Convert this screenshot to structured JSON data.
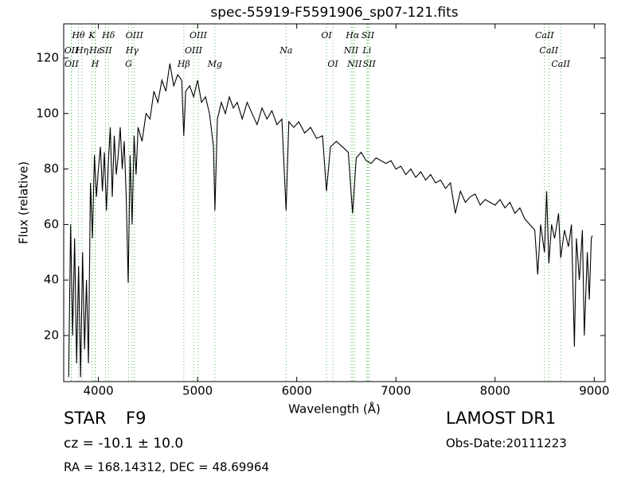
{
  "chart_data": {
    "type": "line",
    "title": "spec-55919-F5591906_sp07-121.fits",
    "x_label": "Wavelength (Å)",
    "y_label": "Flux (relative)",
    "xlim": [
      3650,
      9110
    ],
    "ylim": [
      3.4,
      132.3
    ],
    "xticks": [
      4000,
      5000,
      6000,
      7000,
      8000,
      9000
    ],
    "yticks": [
      20,
      40,
      60,
      80,
      100,
      120
    ],
    "color": "#000000",
    "x": [
      3700,
      3720,
      3740,
      3760,
      3780,
      3800,
      3820,
      3840,
      3860,
      3880,
      3900,
      3920,
      3940,
      3960,
      3980,
      4000,
      4020,
      4040,
      4060,
      4080,
      4100,
      4120,
      4140,
      4160,
      4180,
      4200,
      4220,
      4240,
      4260,
      4280,
      4300,
      4320,
      4340,
      4360,
      4380,
      4400,
      4440,
      4480,
      4520,
      4560,
      4600,
      4640,
      4680,
      4720,
      4760,
      4800,
      4840,
      4861,
      4880,
      4920,
      4960,
      5000,
      5040,
      5080,
      5120,
      5160,
      5175,
      5200,
      5240,
      5280,
      5320,
      5360,
      5400,
      5450,
      5500,
      5550,
      5600,
      5650,
      5700,
      5750,
      5800,
      5850,
      5893,
      5920,
      5970,
      6020,
      6080,
      6140,
      6200,
      6260,
      6300,
      6340,
      6400,
      6460,
      6520,
      6563,
      6600,
      6650,
      6700,
      6750,
      6800,
      6850,
      6900,
      6950,
      7000,
      7050,
      7100,
      7150,
      7200,
      7250,
      7300,
      7350,
      7400,
      7450,
      7500,
      7550,
      7600,
      7650,
      7700,
      7750,
      7800,
      7850,
      7900,
      7950,
      8000,
      8050,
      8100,
      8150,
      8200,
      8250,
      8300,
      8350,
      8400,
      8430,
      8460,
      8498,
      8520,
      8542,
      8570,
      8600,
      8640,
      8662,
      8700,
      8740,
      8770,
      8800,
      8820,
      8850,
      8880,
      8900,
      8930,
      8950,
      8970,
      8980
    ],
    "values": [
      5,
      60,
      20,
      55,
      10,
      45,
      5,
      50,
      15,
      40,
      10,
      75,
      55,
      85,
      70,
      80,
      88,
      72,
      86,
      65,
      82,
      95,
      70,
      92,
      78,
      85,
      95,
      80,
      90,
      70,
      39,
      85,
      60,
      92,
      78,
      95,
      90,
      100,
      98,
      108,
      104,
      112,
      108,
      118,
      110,
      114,
      112,
      92,
      108,
      110,
      106,
      112,
      104,
      106,
      100,
      88,
      65,
      98,
      104,
      100,
      106,
      102,
      104,
      98,
      104,
      100,
      96,
      102,
      98,
      101,
      96,
      98,
      65,
      97,
      95,
      97,
      93,
      95,
      91,
      92,
      72,
      88,
      90,
      88,
      86,
      64,
      84,
      86,
      83,
      82,
      84,
      83,
      82,
      83,
      80,
      81,
      78,
      80,
      77,
      79,
      76,
      78,
      75,
      76,
      73,
      75,
      64,
      72,
      68,
      70,
      71,
      67,
      69,
      68,
      67,
      69,
      66,
      68,
      64,
      66,
      62,
      60,
      58,
      42,
      60,
      50,
      72,
      46,
      60,
      55,
      64,
      48,
      58,
      52,
      60,
      16,
      55,
      40,
      58,
      20,
      50,
      33,
      55,
      56
    ],
    "lines": [
      {
        "label": "OII",
        "x": 3727
      },
      {
        "label": "OII",
        "x": 3729
      },
      {
        "label": "Hθ",
        "x": 3798
      },
      {
        "label": "Hη",
        "x": 3835
      },
      {
        "label": "K",
        "x": 3934
      },
      {
        "label": "H",
        "x": 3968
      },
      {
        "label": "Hε",
        "x": 3970
      },
      {
        "label": "SII",
        "x": 4072
      },
      {
        "label": "Hδ",
        "x": 4102
      },
      {
        "label": "G",
        "x": 4305
      },
      {
        "label": "Hγ",
        "x": 4340
      },
      {
        "label": "OIII",
        "x": 4363
      },
      {
        "label": "Hβ",
        "x": 4861
      },
      {
        "label": "OIII",
        "x": 4959
      },
      {
        "label": "OIII",
        "x": 5007
      },
      {
        "label": "Mg",
        "x": 5175
      },
      {
        "label": "Na",
        "x": 5893
      },
      {
        "label": "OI",
        "x": 6300
      },
      {
        "label": "OI",
        "x": 6364
      },
      {
        "label": "NII",
        "x": 6548
      },
      {
        "label": "Hα",
        "x": 6563
      },
      {
        "label": "NII",
        "x": 6583
      },
      {
        "label": "Li",
        "x": 6708
      },
      {
        "label": "SII",
        "x": 6717
      },
      {
        "label": "SII",
        "x": 6731
      },
      {
        "label": "CaII",
        "x": 8498
      },
      {
        "label": "CaII",
        "x": 8542
      },
      {
        "label": "CaII",
        "x": 8662
      }
    ]
  },
  "footer": {
    "class": "STAR",
    "subclass": "F9",
    "redshift": "cz = -10.1 ± 10.0",
    "coords": "RA = 168.14312, DEC = 48.69964",
    "survey": "LAMOST DR1",
    "obs_date": "Obs-Date:20111223"
  }
}
